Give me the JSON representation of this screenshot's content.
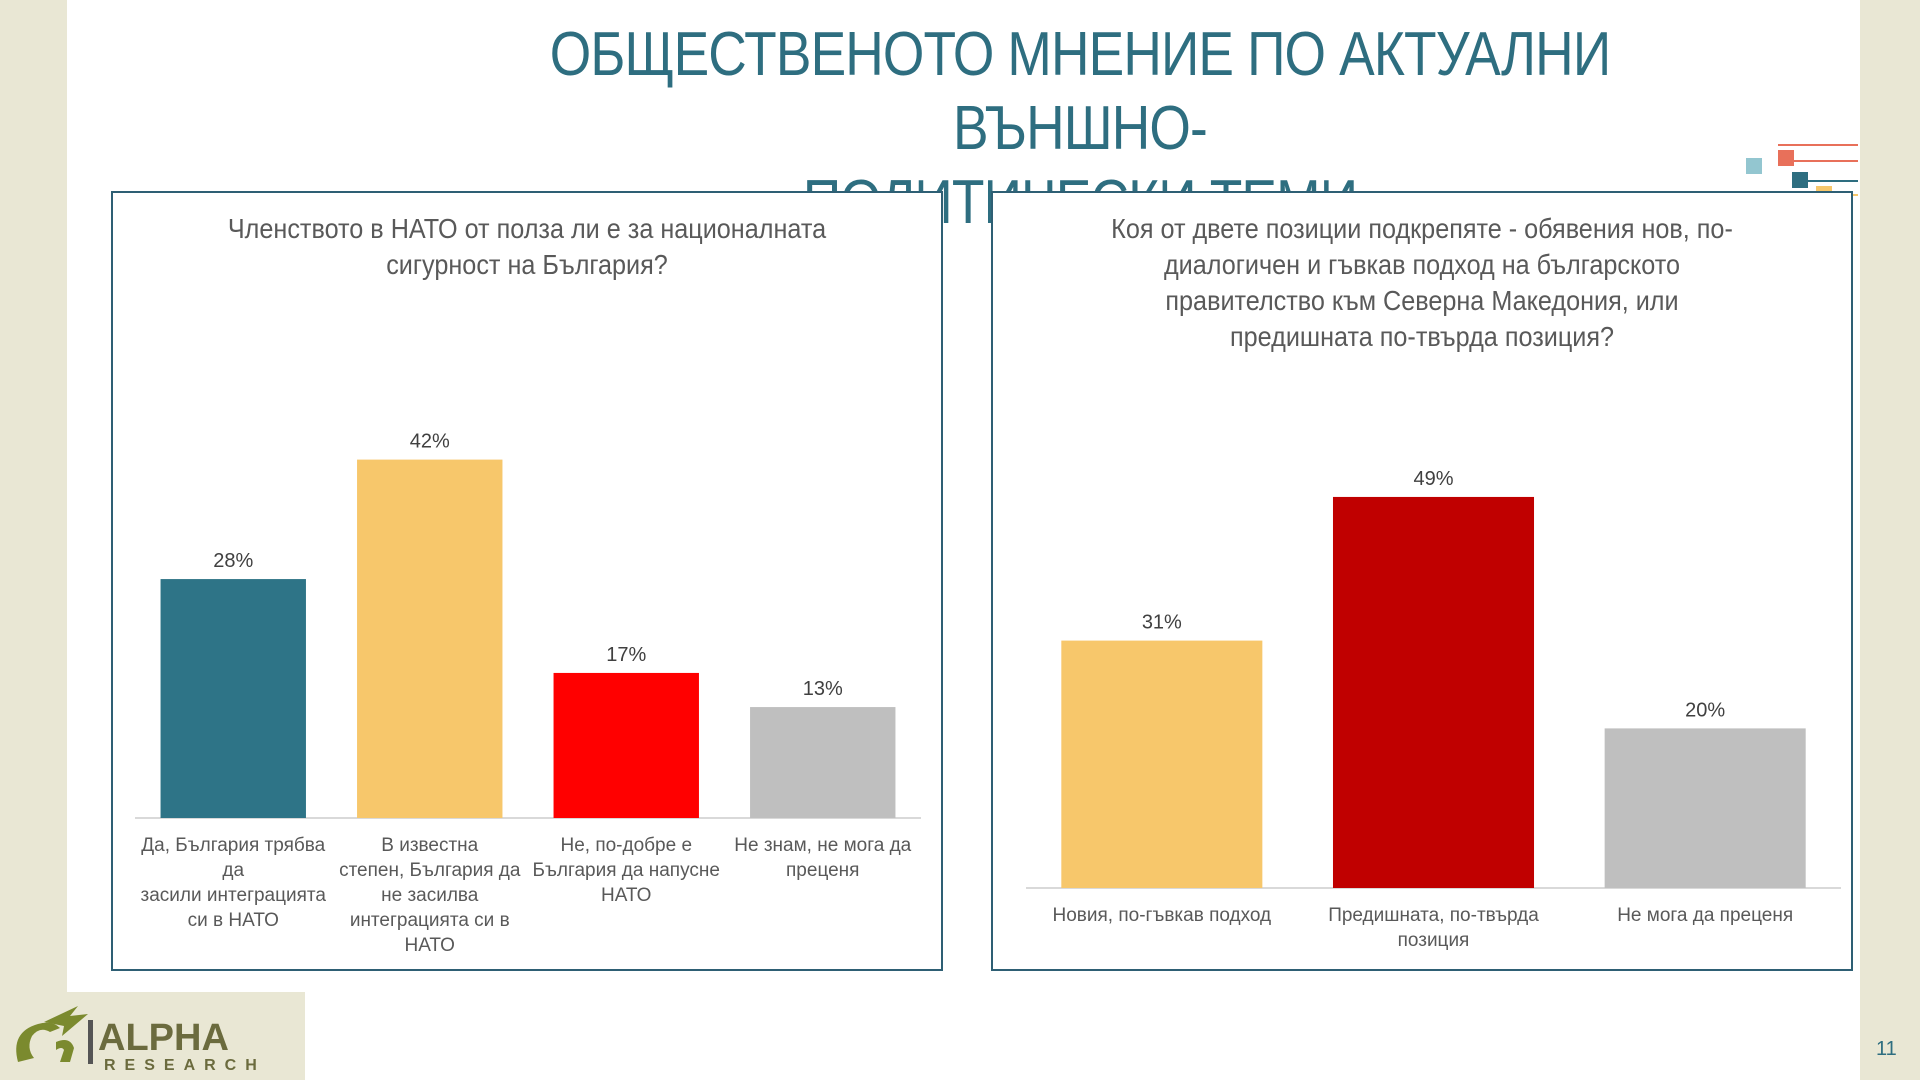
{
  "title": "ОБЩЕСТВЕНОТО МНЕНИЕ ПО АКТУАЛНИ ВЪНШНО-ПОЛИТИЧЕСКИ ТЕМИ",
  "title_lines": [
    "ОБЩЕСТВЕНОТО МНЕНИЕ ПО АКТУАЛНИ ВЪНШНО-",
    "ПОЛИТИЧЕСКИ ТЕМИ"
  ],
  "page_number": "11",
  "logo": {
    "brand": "ALPHA",
    "sub": "RESEARCH"
  },
  "colors": {
    "accent": "#2e6e80",
    "teal": "#2e7487",
    "yellow": "#f7c76b",
    "red": "#ff0000",
    "darkred": "#c00000",
    "gray": "#bfbfbf"
  },
  "chart_data": [
    {
      "type": "bar",
      "title": "Членството в НАТО от полза ли е за националната сигурност на България?",
      "title_lines": [
        "Членството в НАТО от полза ли е за националната",
        "сигурност на България?"
      ],
      "categories": [
        "Да, България трябва да засили интеграцията си в НАТО",
        "В известна степен,  България да не засилва интеграцията си в НАТО",
        "Не, по-добре е България да напусне НАТО",
        "Не знам, не мога да преценя"
      ],
      "category_lines": [
        [
          "Да, България трябва да",
          "засили интеграцията",
          "си в НАТО"
        ],
        [
          "В известна",
          "степен,  България да",
          "не засилва",
          "интеграцията си в",
          "НАТО"
        ],
        [
          "Не, по-добре е",
          "България да напусне",
          "НАТО"
        ],
        [
          "Не знам, не мога да",
          "преценя"
        ]
      ],
      "values": [
        28,
        42,
        17,
        13
      ],
      "data_labels": [
        "28%",
        "42%",
        "17%",
        "13%"
      ],
      "colors": [
        "#2e7487",
        "#f7c76b",
        "#ff0000",
        "#bfbfbf"
      ],
      "ylim": [
        0,
        45
      ],
      "grid": false,
      "legend": "none"
    },
    {
      "type": "bar",
      "title": "Коя от двете позиции подкрепяте - обявения нов, по-диалогичен и гъвкав подход на българското правителство към Северна Македония, или предишната по-твърда позиция?",
      "title_lines": [
        "Коя от двете позиции подкрепяте - обявения нов, по-",
        "диалогичен и гъвкав подход на българското",
        "правителство към Северна Македония, или",
        "предишната по-твърда позиция?"
      ],
      "categories": [
        "Новия, по-гъвкав подход",
        "Предишната,  по-твърда позиция",
        "Не  мога да преценя"
      ],
      "category_lines": [
        [
          "Новия, по-гъвкав подход"
        ],
        [
          "Предишната,  по-твърда",
          "позиция"
        ],
        [
          "Не  мога да преценя"
        ]
      ],
      "values": [
        31,
        49,
        20
      ],
      "data_labels": [
        "31%",
        "49%",
        "20%"
      ],
      "colors": [
        "#f7c76b",
        "#c00000",
        "#bfbfbf"
      ],
      "ylim": [
        0,
        52
      ],
      "grid": false,
      "legend": "none"
    }
  ]
}
